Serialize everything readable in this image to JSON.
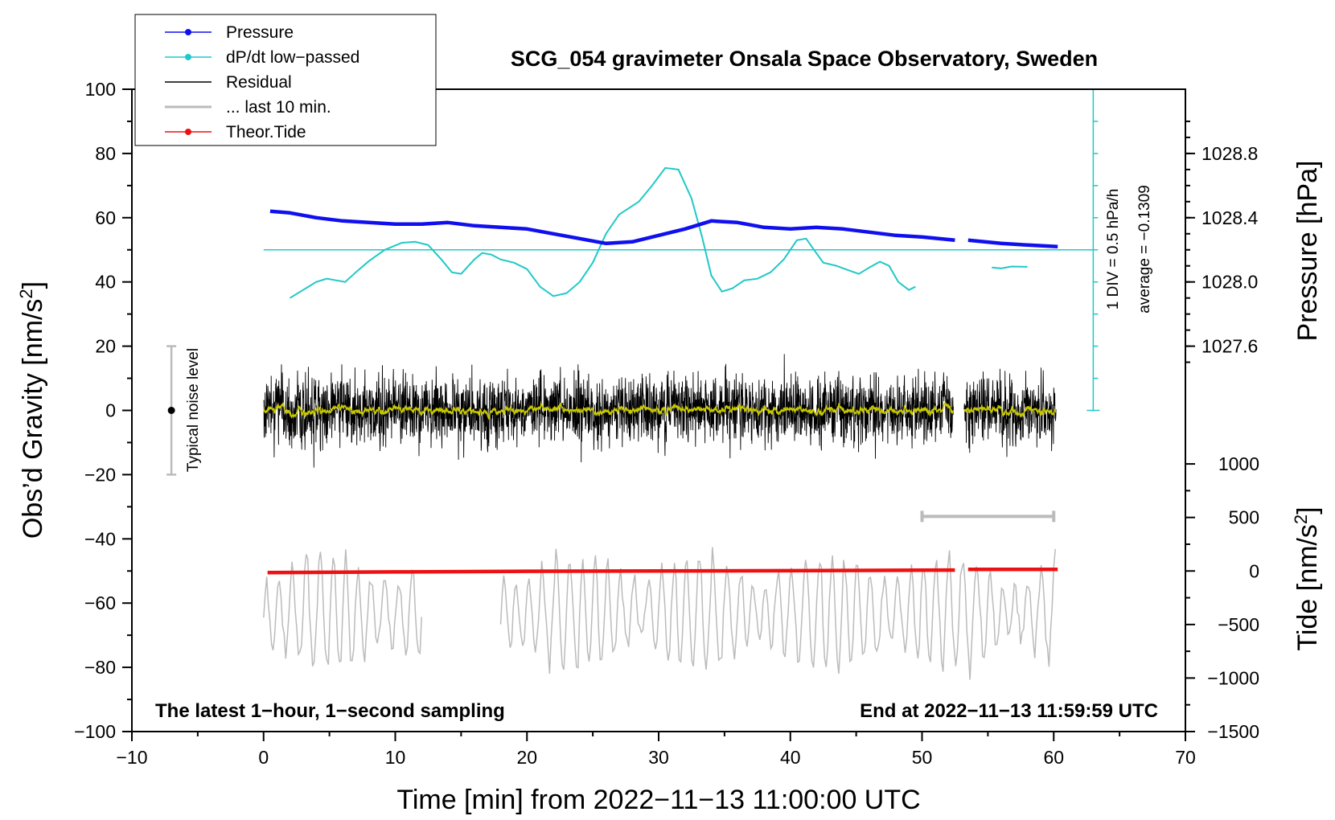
{
  "chart_data": {
    "type": "line",
    "title": "SCG_054 gravimeter Onsala Space Observatory, Sweden",
    "xlabel": "Time [min] from 2022−11−13 11:00:00 UTC",
    "ylabel": "Obs’d Gravity [nm/s",
    "ylabel_sup": "2",
    "ylabel_end": "]",
    "y2label": "Pressure [hPa]",
    "y3label": "Tide [nm/s",
    "y3label_sup": "2",
    "y3label_end": "]",
    "xlim": [
      -10,
      70
    ],
    "ylim": [
      -100,
      100
    ],
    "x_ticks": [
      -10,
      0,
      10,
      20,
      30,
      40,
      50,
      60,
      70
    ],
    "x_tick_labels": [
      "−10",
      "0",
      "10",
      "20",
      "30",
      "40",
      "50",
      "60",
      "70"
    ],
    "y_ticks": [
      -100,
      -80,
      -60,
      -40,
      -20,
      0,
      20,
      40,
      60,
      80,
      100
    ],
    "y_tick_labels": [
      "−100",
      "−80",
      "−60",
      "−40",
      "−20",
      "0",
      "20",
      "40",
      "60",
      "80",
      "100"
    ],
    "pressure_axis": {
      "ticks": [
        1027.6,
        1028.0,
        1028.4,
        1028.8
      ],
      "tick_labels": [
        "1027.6",
        "1028.0",
        "1028.4",
        "1028.8"
      ],
      "gravity_at_ref": 60,
      "ref_value": 1028.4,
      "gravity_per_hPa": 50
    },
    "tide_axis": {
      "ticks": [
        1000,
        500,
        0,
        -500,
        -1000,
        -1500
      ],
      "tick_labels": [
        "1000",
        "500",
        "0",
        "−500",
        "−1000",
        "−1500"
      ],
      "gravity_at_zero": -50,
      "gravity_per_nms2": 0.0333333
    },
    "legend": [
      {
        "label": "Pressure",
        "color": "#1010ee",
        "marker": true
      },
      {
        "label": "dP/dt low−passed",
        "color": "#20c8c8",
        "marker": true
      },
      {
        "label": "Residual",
        "color": "#000000",
        "marker": false
      },
      {
        "label": "... last 10 min.",
        "color": "#bbbbbb",
        "marker": false
      },
      {
        "label": "Theor.Tide",
        "color": "#ee1111",
        "marker": true
      }
    ],
    "series": [
      {
        "name": "Pressure",
        "color": "#1010ee",
        "units": "hPa",
        "points": [
          [
            0.5,
            1028.44
          ],
          [
            2,
            1028.43
          ],
          [
            4,
            1028.4
          ],
          [
            6,
            1028.38
          ],
          [
            8,
            1028.37
          ],
          [
            10,
            1028.36
          ],
          [
            12,
            1028.36
          ],
          [
            14,
            1028.37
          ],
          [
            16,
            1028.35
          ],
          [
            18,
            1028.34
          ],
          [
            20,
            1028.33
          ],
          [
            22,
            1028.3
          ],
          [
            24,
            1028.27
          ],
          [
            26,
            1028.24
          ],
          [
            28,
            1028.25
          ],
          [
            30,
            1028.29
          ],
          [
            32,
            1028.33
          ],
          [
            34,
            1028.38
          ],
          [
            36,
            1028.37
          ],
          [
            38,
            1028.34
          ],
          [
            40,
            1028.33
          ],
          [
            42,
            1028.34
          ],
          [
            44,
            1028.33
          ],
          [
            46,
            1028.31
          ],
          [
            48,
            1028.29
          ],
          [
            50,
            1028.28
          ],
          [
            52.5,
            1028.26
          ],
          [
            null,
            null
          ],
          [
            53.5,
            1028.26
          ],
          [
            56,
            1028.24
          ],
          [
            58,
            1028.23
          ],
          [
            60.3,
            1028.22
          ]
        ]
      },
      {
        "name": "dP/dt low−passed",
        "color": "#20c8c8",
        "units": "gravity axis",
        "points": [
          [
            2,
            35
          ],
          [
            3,
            37.5
          ],
          [
            4,
            40
          ],
          [
            4.8,
            41
          ],
          [
            5.5,
            40.5
          ],
          [
            6.2,
            40
          ],
          [
            7,
            43
          ],
          [
            8,
            46.5
          ],
          [
            9.2,
            50
          ],
          [
            10.5,
            52.2
          ],
          [
            11.5,
            52.5
          ],
          [
            12.5,
            51.5
          ],
          [
            13.5,
            47
          ],
          [
            14.3,
            43
          ],
          [
            15,
            42.5
          ],
          [
            16,
            47
          ],
          [
            16.6,
            49
          ],
          [
            17.3,
            48.5
          ],
          [
            18,
            47
          ],
          [
            19,
            46
          ],
          [
            20,
            44
          ],
          [
            21,
            38.5
          ],
          [
            22,
            35.6
          ],
          [
            23,
            36.5
          ],
          [
            24,
            40
          ],
          [
            25,
            46
          ],
          [
            26,
            55
          ],
          [
            27,
            61
          ],
          [
            28.5,
            65
          ],
          [
            29.5,
            70
          ],
          [
            30.5,
            75.5
          ],
          [
            31.5,
            75
          ],
          [
            32.5,
            66
          ],
          [
            33.3,
            54
          ],
          [
            34,
            42
          ],
          [
            34.8,
            37
          ],
          [
            35.6,
            38
          ],
          [
            36.5,
            40.5
          ],
          [
            37.5,
            41
          ],
          [
            38.5,
            43
          ],
          [
            39.5,
            47
          ],
          [
            40.5,
            53
          ],
          [
            41.2,
            53.5
          ],
          [
            41.8,
            50
          ],
          [
            42.5,
            46
          ],
          [
            43.5,
            45
          ],
          [
            44.5,
            43.5
          ],
          [
            45.2,
            42.5
          ],
          [
            46,
            44.5
          ],
          [
            46.8,
            46.3
          ],
          [
            47.5,
            45
          ],
          [
            48.2,
            40
          ],
          [
            49,
            37.5
          ],
          [
            49.5,
            38.5
          ],
          [
            null,
            null
          ],
          [
            55.3,
            44.5
          ],
          [
            56,
            44.2
          ],
          [
            56.8,
            44.8
          ],
          [
            58,
            44.7
          ]
        ]
      }
    ],
    "dpdt_zero_line": 50,
    "residual": {
      "color": "#000000",
      "smooth_color": "#c8c800",
      "segments": [
        [
          0,
          52.4
        ],
        [
          53.2,
          60.2
        ]
      ],
      "typical_amplitude": 12,
      "max": 22.5,
      "min": -25.5
    },
    "last_10_min": {
      "color": "#bbbbbb",
      "segments": [
        [
          0,
          12
        ],
        [
          18,
          60.2
        ]
      ],
      "center": -63,
      "max": -41,
      "min": -84
    },
    "theor_tide": {
      "color": "#ee1111",
      "units": "gravity axis",
      "points": [
        [
          0.3,
          -50.5
        ],
        [
          10,
          -50.3
        ],
        [
          20,
          -50.1
        ],
        [
          30,
          -50
        ],
        [
          40,
          -49.9
        ],
        [
          52.5,
          -49.7
        ],
        [
          null,
          null
        ],
        [
          53.5,
          -49.5
        ],
        [
          60.3,
          -49.5
        ]
      ]
    },
    "ten_min_bar": {
      "x": [
        50,
        60
      ],
      "y": -33,
      "color": "#bbbbbb"
    },
    "noise_level": {
      "x": -7,
      "y_range": [
        -20,
        20
      ],
      "center": 0,
      "label": "Typical noise level"
    },
    "scale_bar": {
      "x": 63,
      "y_range": [
        0,
        100
      ],
      "line1": "1 DIV = 0.5 hPa/h",
      "line2": "average = −0.1309"
    },
    "footer_left": "The latest 1−hour, 1−second sampling",
    "footer_right": "End at 2022−11−13 11:59:59 UTC"
  }
}
